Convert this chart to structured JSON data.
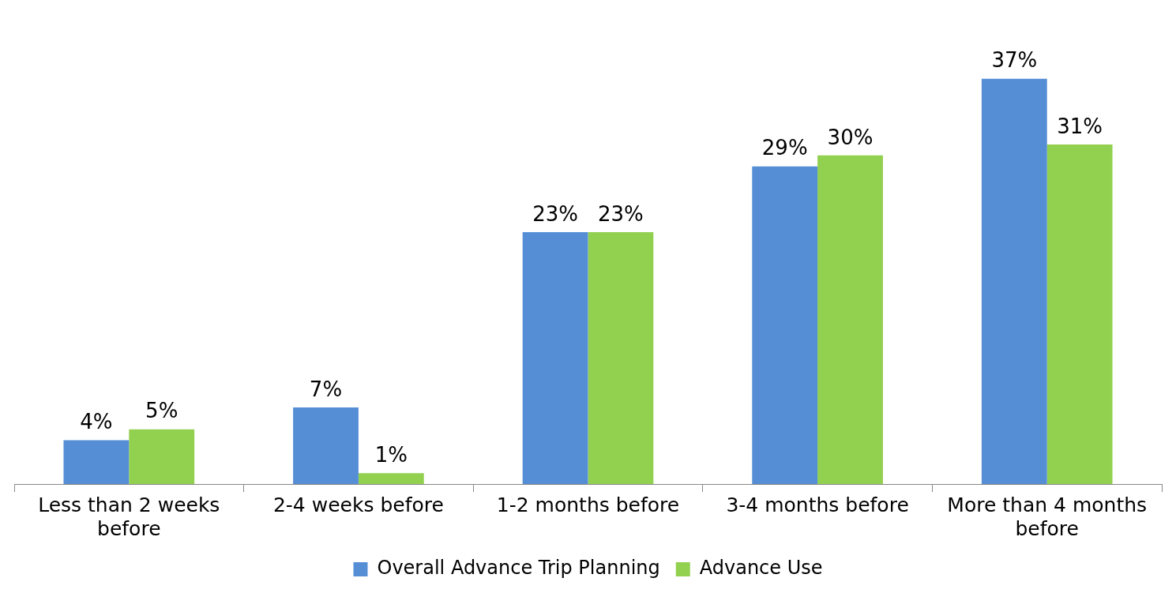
{
  "chart_data": {
    "type": "bar",
    "categories": [
      "Less than 2 weeks before",
      "2-4 weeks before",
      "1-2 months before",
      "3-4 months before",
      "More than 4 months before"
    ],
    "series": [
      {
        "name": "Overall Advance Trip Planning",
        "color": "#558ed5",
        "values": [
          4,
          7,
          23,
          29,
          37
        ],
        "value_labels": [
          "4%",
          "7%",
          "23%",
          "29%",
          "37%"
        ]
      },
      {
        "name": "Advance Use",
        "color": "#92d050",
        "values": [
          5,
          1,
          23,
          30,
          31
        ],
        "value_labels": [
          "5%",
          "1%",
          "23%",
          "30%",
          "31%"
        ]
      }
    ],
    "legend": "bottom",
    "grid": false
  }
}
